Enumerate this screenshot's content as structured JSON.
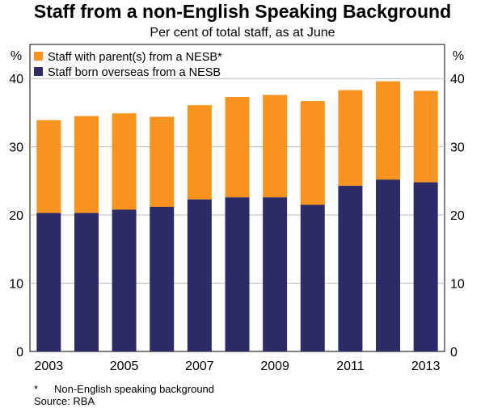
{
  "chart_data": {
    "type": "bar",
    "stacked": true,
    "title": "Staff from a non-English Speaking Background",
    "subtitle": "Per cent of total staff, as at June",
    "y_unit_label": "%",
    "ylim": [
      0,
      45
    ],
    "y_ticks": [
      0,
      10,
      20,
      30,
      40
    ],
    "grid": true,
    "legend_position": "top-left",
    "categories": [
      "2003",
      "2004",
      "2005",
      "2006",
      "2007",
      "2008",
      "2009",
      "2010",
      "2011",
      "2012",
      "2013"
    ],
    "x_tick_labels": [
      "2003",
      "2005",
      "2007",
      "2009",
      "2011",
      "2013"
    ],
    "series": [
      {
        "name": "Staff born overseas from a NESB",
        "color": "#2e2c66",
        "values": [
          20.3,
          20.3,
          20.8,
          21.2,
          22.3,
          22.6,
          22.6,
          21.5,
          24.3,
          25.2,
          24.8
        ]
      },
      {
        "name": "Staff with parent(s) from a NESB*",
        "color": "#f7931e",
        "values": [
          13.6,
          14.2,
          14.1,
          13.2,
          13.8,
          14.7,
          15.0,
          15.2,
          14.0,
          14.4,
          13.4
        ]
      }
    ],
    "legend_order": [
      1,
      0
    ],
    "footnote_marker": "*",
    "footnote": "Non-English speaking background",
    "source": "Source: RBA"
  }
}
